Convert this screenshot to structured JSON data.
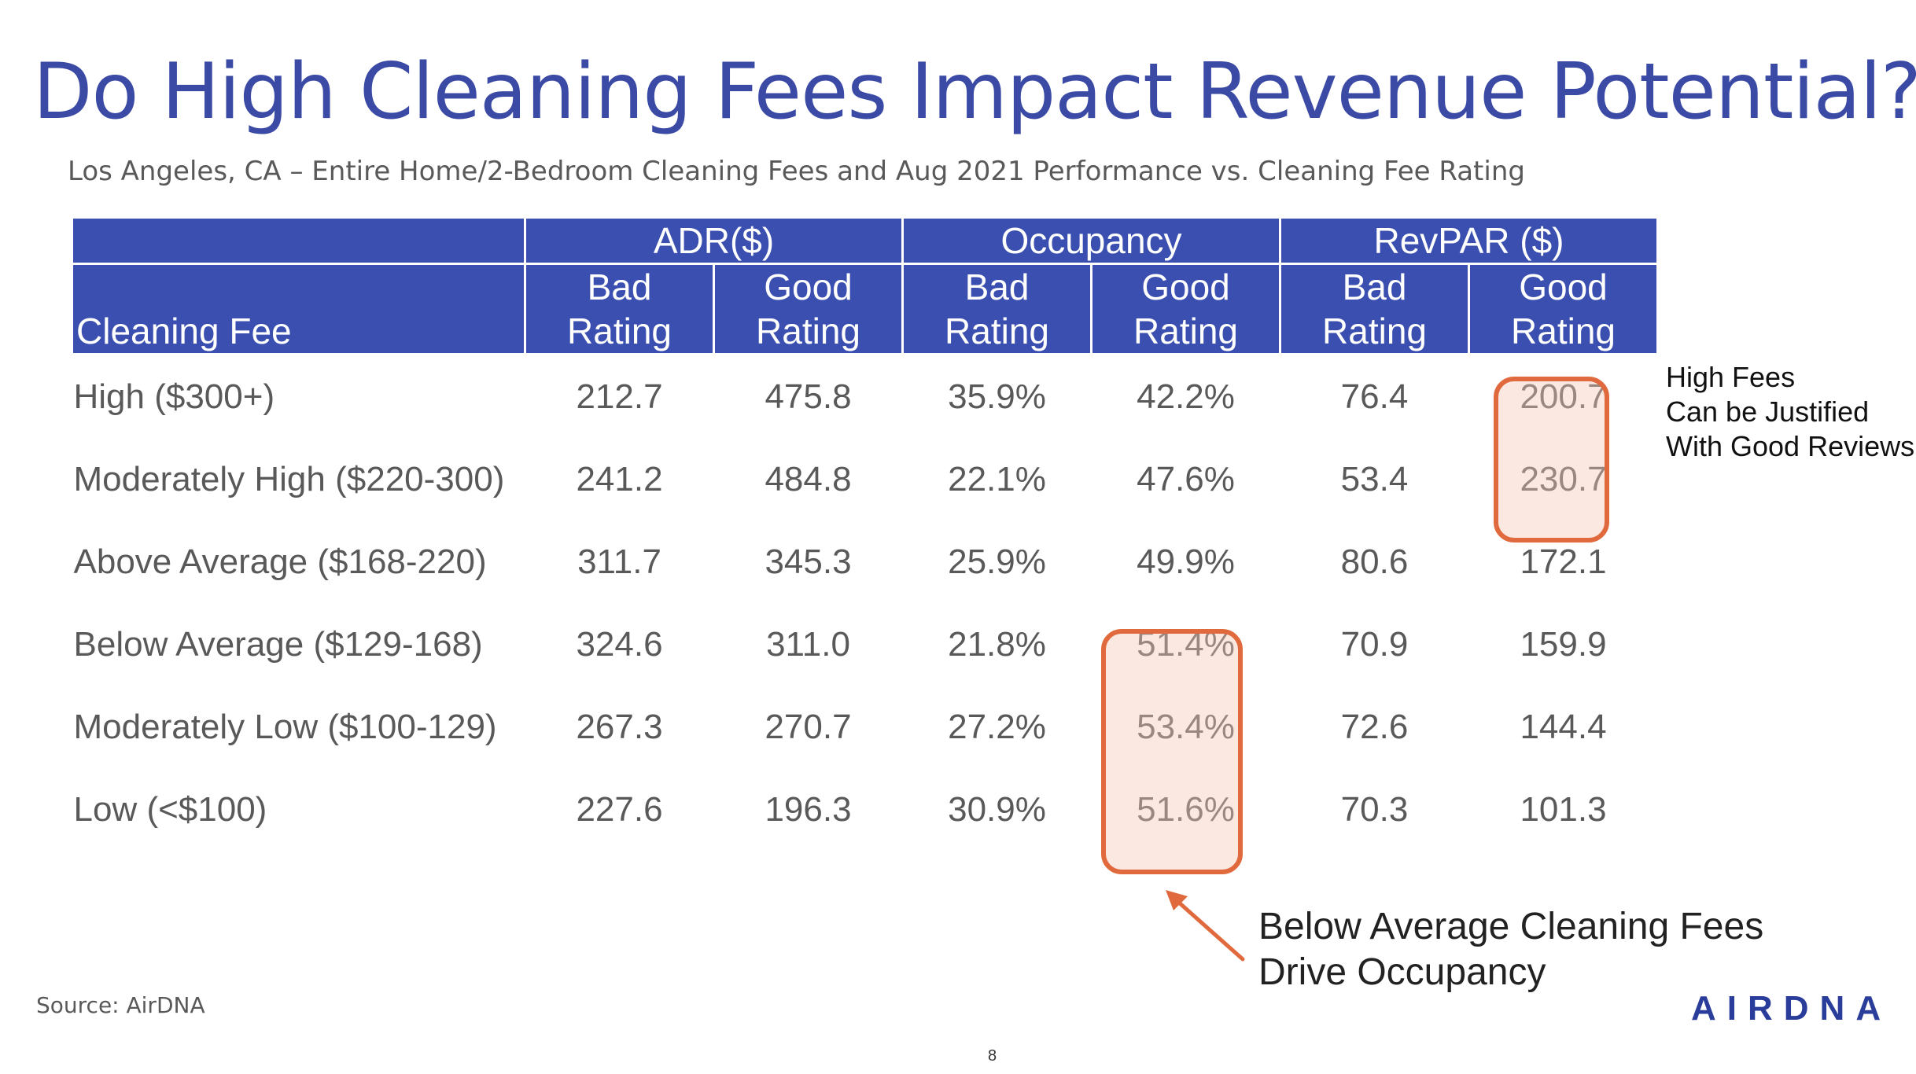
{
  "title": "Do High Cleaning Fees Impact Revenue Potential?",
  "subtitle": "Los Angeles, CA – Entire Home/2-Bedroom Cleaning Fees and Aug 2021 Performance vs. Cleaning Fee Rating",
  "table": {
    "row_header": "Cleaning Fee",
    "groups": [
      "ADR($)",
      "Occupancy",
      "RevPAR ($)"
    ],
    "sub_bad": [
      "Bad",
      "Rating"
    ],
    "sub_good": [
      "Good",
      "Rating"
    ],
    "rows": [
      {
        "label": "High ($300+)",
        "values": [
          "212.7",
          "475.8",
          "35.9%",
          "42.2%",
          "76.4",
          "200.7"
        ]
      },
      {
        "label": "Moderately High ($220-300)",
        "values": [
          "241.2",
          "484.8",
          "22.1%",
          "47.6%",
          "53.4",
          "230.7"
        ]
      },
      {
        "label": "Above Average ($168-220)",
        "values": [
          "311.7",
          "345.3",
          "25.9%",
          "49.9%",
          "80.6",
          "172.1"
        ]
      },
      {
        "label": "Below Average ($129-168)",
        "values": [
          "324.6",
          "311.0",
          "21.8%",
          "51.4%",
          "70.9",
          "159.9"
        ]
      },
      {
        "label": "Moderately Low ($100-129)",
        "values": [
          "267.3",
          "270.7",
          "27.2%",
          "53.4%",
          "72.6",
          "144.4"
        ]
      },
      {
        "label": "Low (<$100)",
        "values": [
          "227.6",
          "196.3",
          "30.9%",
          "51.6%",
          "70.3",
          "101.3"
        ]
      }
    ]
  },
  "callout_right": [
    "High Fees",
    "Can be Justified",
    "With Good Reviews"
  ],
  "callout_bottom": [
    "Below Average Cleaning Fees",
    "Drive Occupancy"
  ],
  "source": "Source: AirDNA",
  "logo": "AIRDNA",
  "page_number": "8",
  "colors": {
    "header_bg": "#3a4fb0",
    "title": "#3a4aa5",
    "highlight": "#e06a3d"
  }
}
